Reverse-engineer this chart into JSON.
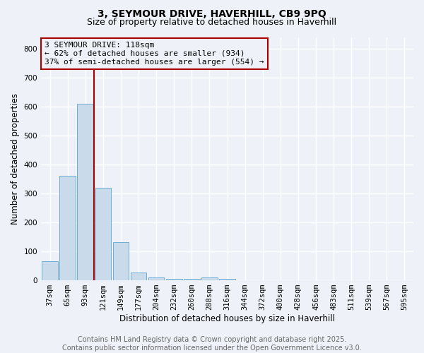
{
  "title_line1": "3, SEYMOUR DRIVE, HAVERHILL, CB9 9PQ",
  "title_line2": "Size of property relative to detached houses in Haverhill",
  "xlabel": "Distribution of detached houses by size in Haverhill",
  "ylabel": "Number of detached properties",
  "bar_labels": [
    "37sqm",
    "65sqm",
    "93sqm",
    "121sqm",
    "149sqm",
    "177sqm",
    "204sqm",
    "232sqm",
    "260sqm",
    "288sqm",
    "316sqm",
    "344sqm",
    "372sqm",
    "400sqm",
    "428sqm",
    "456sqm",
    "483sqm",
    "511sqm",
    "539sqm",
    "567sqm",
    "595sqm"
  ],
  "bar_values": [
    65,
    360,
    610,
    320,
    130,
    27,
    8,
    5,
    5,
    8,
    5,
    0,
    0,
    0,
    0,
    0,
    0,
    0,
    0,
    0,
    0
  ],
  "bar_color": "#c9daea",
  "bar_edge_color": "#6aaed6",
  "vline_x_index": 3,
  "vline_color": "#aa0000",
  "annotation_text": "3 SEYMOUR DRIVE: 118sqm\n← 62% of detached houses are smaller (934)\n37% of semi-detached houses are larger (554) →",
  "annotation_box_edgecolor": "#aa0000",
  "annotation_fontsize": 8.0,
  "ylim": [
    0,
    840
  ],
  "yticks": [
    0,
    100,
    200,
    300,
    400,
    500,
    600,
    700,
    800
  ],
  "footer_text": "Contains HM Land Registry data © Crown copyright and database right 2025.\nContains public sector information licensed under the Open Government Licence v3.0.",
  "background_color": "#eef2f8",
  "grid_color": "#ffffff",
  "title_fontsize": 10,
  "subtitle_fontsize": 9,
  "axis_label_fontsize": 8.5,
  "tick_fontsize": 7.5,
  "footer_fontsize": 7.0
}
